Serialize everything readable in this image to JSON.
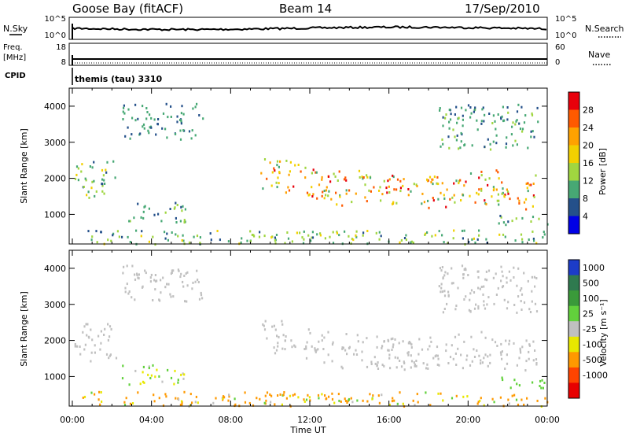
{
  "header": {
    "station": "Goose Bay (fitACF)",
    "beam": "Beam 14",
    "date": "17/Sep/2010"
  },
  "top_panels": {
    "nsky_label": "N.Sky",
    "nsearch_label": "N.Search",
    "nsky_ticks": [
      "10^5",
      "10^0"
    ],
    "nsearch_ticks": [
      "10^5",
      "10^0"
    ],
    "freq_label_1": "Freq.",
    "freq_label_2": "[MHz]",
    "freq_ticks": [
      "18",
      "8"
    ],
    "nave_label": "Nave",
    "nave_ticks": [
      "60",
      "0"
    ],
    "cpid_label": "CPID",
    "cpid_value": "themis (tau) 3310"
  },
  "chart_data": [
    {
      "type": "heatmap",
      "name": "power",
      "ylabel": "Slant Range [km]",
      "ylim": [
        180,
        4500
      ],
      "yticks": [
        "4000",
        "3000",
        "2000",
        "1000"
      ],
      "xlim_hours": [
        0,
        24
      ],
      "xticks": [
        "00:00",
        "04:00",
        "08:00",
        "12:00",
        "16:00",
        "20:00",
        "00:00"
      ],
      "colorbar_label": "Power [dB]",
      "colorbar_ticks": [
        "28",
        "24",
        "20",
        "16",
        "12",
        "8",
        "4"
      ],
      "colorbar_colors": [
        "#e8000b",
        "#ff5a00",
        "#ffa200",
        "#f2d000",
        "#a0d640",
        "#47a874",
        "#24508a",
        "#0000e6"
      ],
      "structures": [
        {
          "feature": "early band",
          "hours": [
            0.1,
            2.2
          ],
          "range_km": [
            1450,
            2500
          ],
          "power_db": [
            4,
            16
          ]
        },
        {
          "feature": "high patch",
          "hours": [
            2.5,
            6.6
          ],
          "range_km": [
            3100,
            4100
          ],
          "power_db": [
            4,
            10
          ]
        },
        {
          "feature": "mid patches",
          "hours": [
            2.5,
            5.7
          ],
          "range_km": [
            800,
            1350
          ],
          "power_db": [
            4,
            12
          ]
        },
        {
          "feature": "near range",
          "hours": [
            0.5,
            24
          ],
          "range_km": [
            200,
            600
          ],
          "power_db": [
            4,
            16
          ]
        },
        {
          "feature": "main band",
          "hours": [
            9.5,
            23.5
          ],
          "range_km": [
            1000,
            2600
          ],
          "power_db": [
            8,
            28
          ]
        },
        {
          "feature": "late high",
          "hours": [
            18.5,
            23.5
          ],
          "range_km": [
            2800,
            4100
          ],
          "power_db": [
            4,
            12
          ]
        },
        {
          "feature": "low tail",
          "hours": [
            21.3,
            24
          ],
          "range_km": [
            700,
            1000
          ],
          "power_db": [
            4,
            12
          ]
        }
      ]
    },
    {
      "type": "heatmap",
      "name": "velocity",
      "ylabel": "Slant Range [km]",
      "ylim": [
        180,
        4500
      ],
      "yticks": [
        "4000",
        "3000",
        "2000",
        "1000"
      ],
      "xlim_hours": [
        0,
        24
      ],
      "xticks": [
        "00:00",
        "04:00",
        "08:00",
        "12:00",
        "16:00",
        "20:00",
        "00:00"
      ],
      "xlabel": "Time UT",
      "colorbar_label": "Velocity [m s⁻¹]",
      "colorbar_ticks": [
        "1000",
        "500",
        "100",
        "25",
        "-25",
        "-100",
        "-500",
        "-1000"
      ],
      "colorbar_colors": [
        "#1c3cc8",
        "#2f7a4f",
        "#3a9a3a",
        "#62d13c",
        "#c0c0c0",
        "#e8e800",
        "#ff9900",
        "#ff4400",
        "#e80000"
      ],
      "structures": [
        {
          "feature": "early band",
          "hours": [
            0.1,
            2.2
          ],
          "range_km": [
            1450,
            2500
          ],
          "velocity_ms": [
            -25,
            25
          ]
        },
        {
          "feature": "high patch",
          "hours": [
            2.5,
            6.6
          ],
          "range_km": [
            3100,
            4100
          ],
          "velocity_ms": [
            -25,
            25
          ]
        },
        {
          "feature": "mid patches",
          "hours": [
            2.5,
            5.7
          ],
          "range_km": [
            800,
            1350
          ],
          "velocity_ms": [
            -100,
            100
          ]
        },
        {
          "feature": "near range",
          "hours": [
            0.5,
            24
          ],
          "range_km": [
            200,
            600
          ],
          "velocity_ms": [
            -500,
            100
          ]
        },
        {
          "feature": "main band",
          "hours": [
            9.5,
            23.5
          ],
          "range_km": [
            1000,
            2600
          ],
          "velocity_ms": [
            -25,
            25
          ]
        },
        {
          "feature": "late high",
          "hours": [
            18.5,
            23.5
          ],
          "range_km": [
            2800,
            4100
          ],
          "velocity_ms": [
            -25,
            25
          ]
        },
        {
          "feature": "low tail",
          "hours": [
            21.3,
            24
          ],
          "range_km": [
            700,
            1000
          ],
          "velocity_ms": [
            25,
            100
          ]
        }
      ]
    }
  ]
}
